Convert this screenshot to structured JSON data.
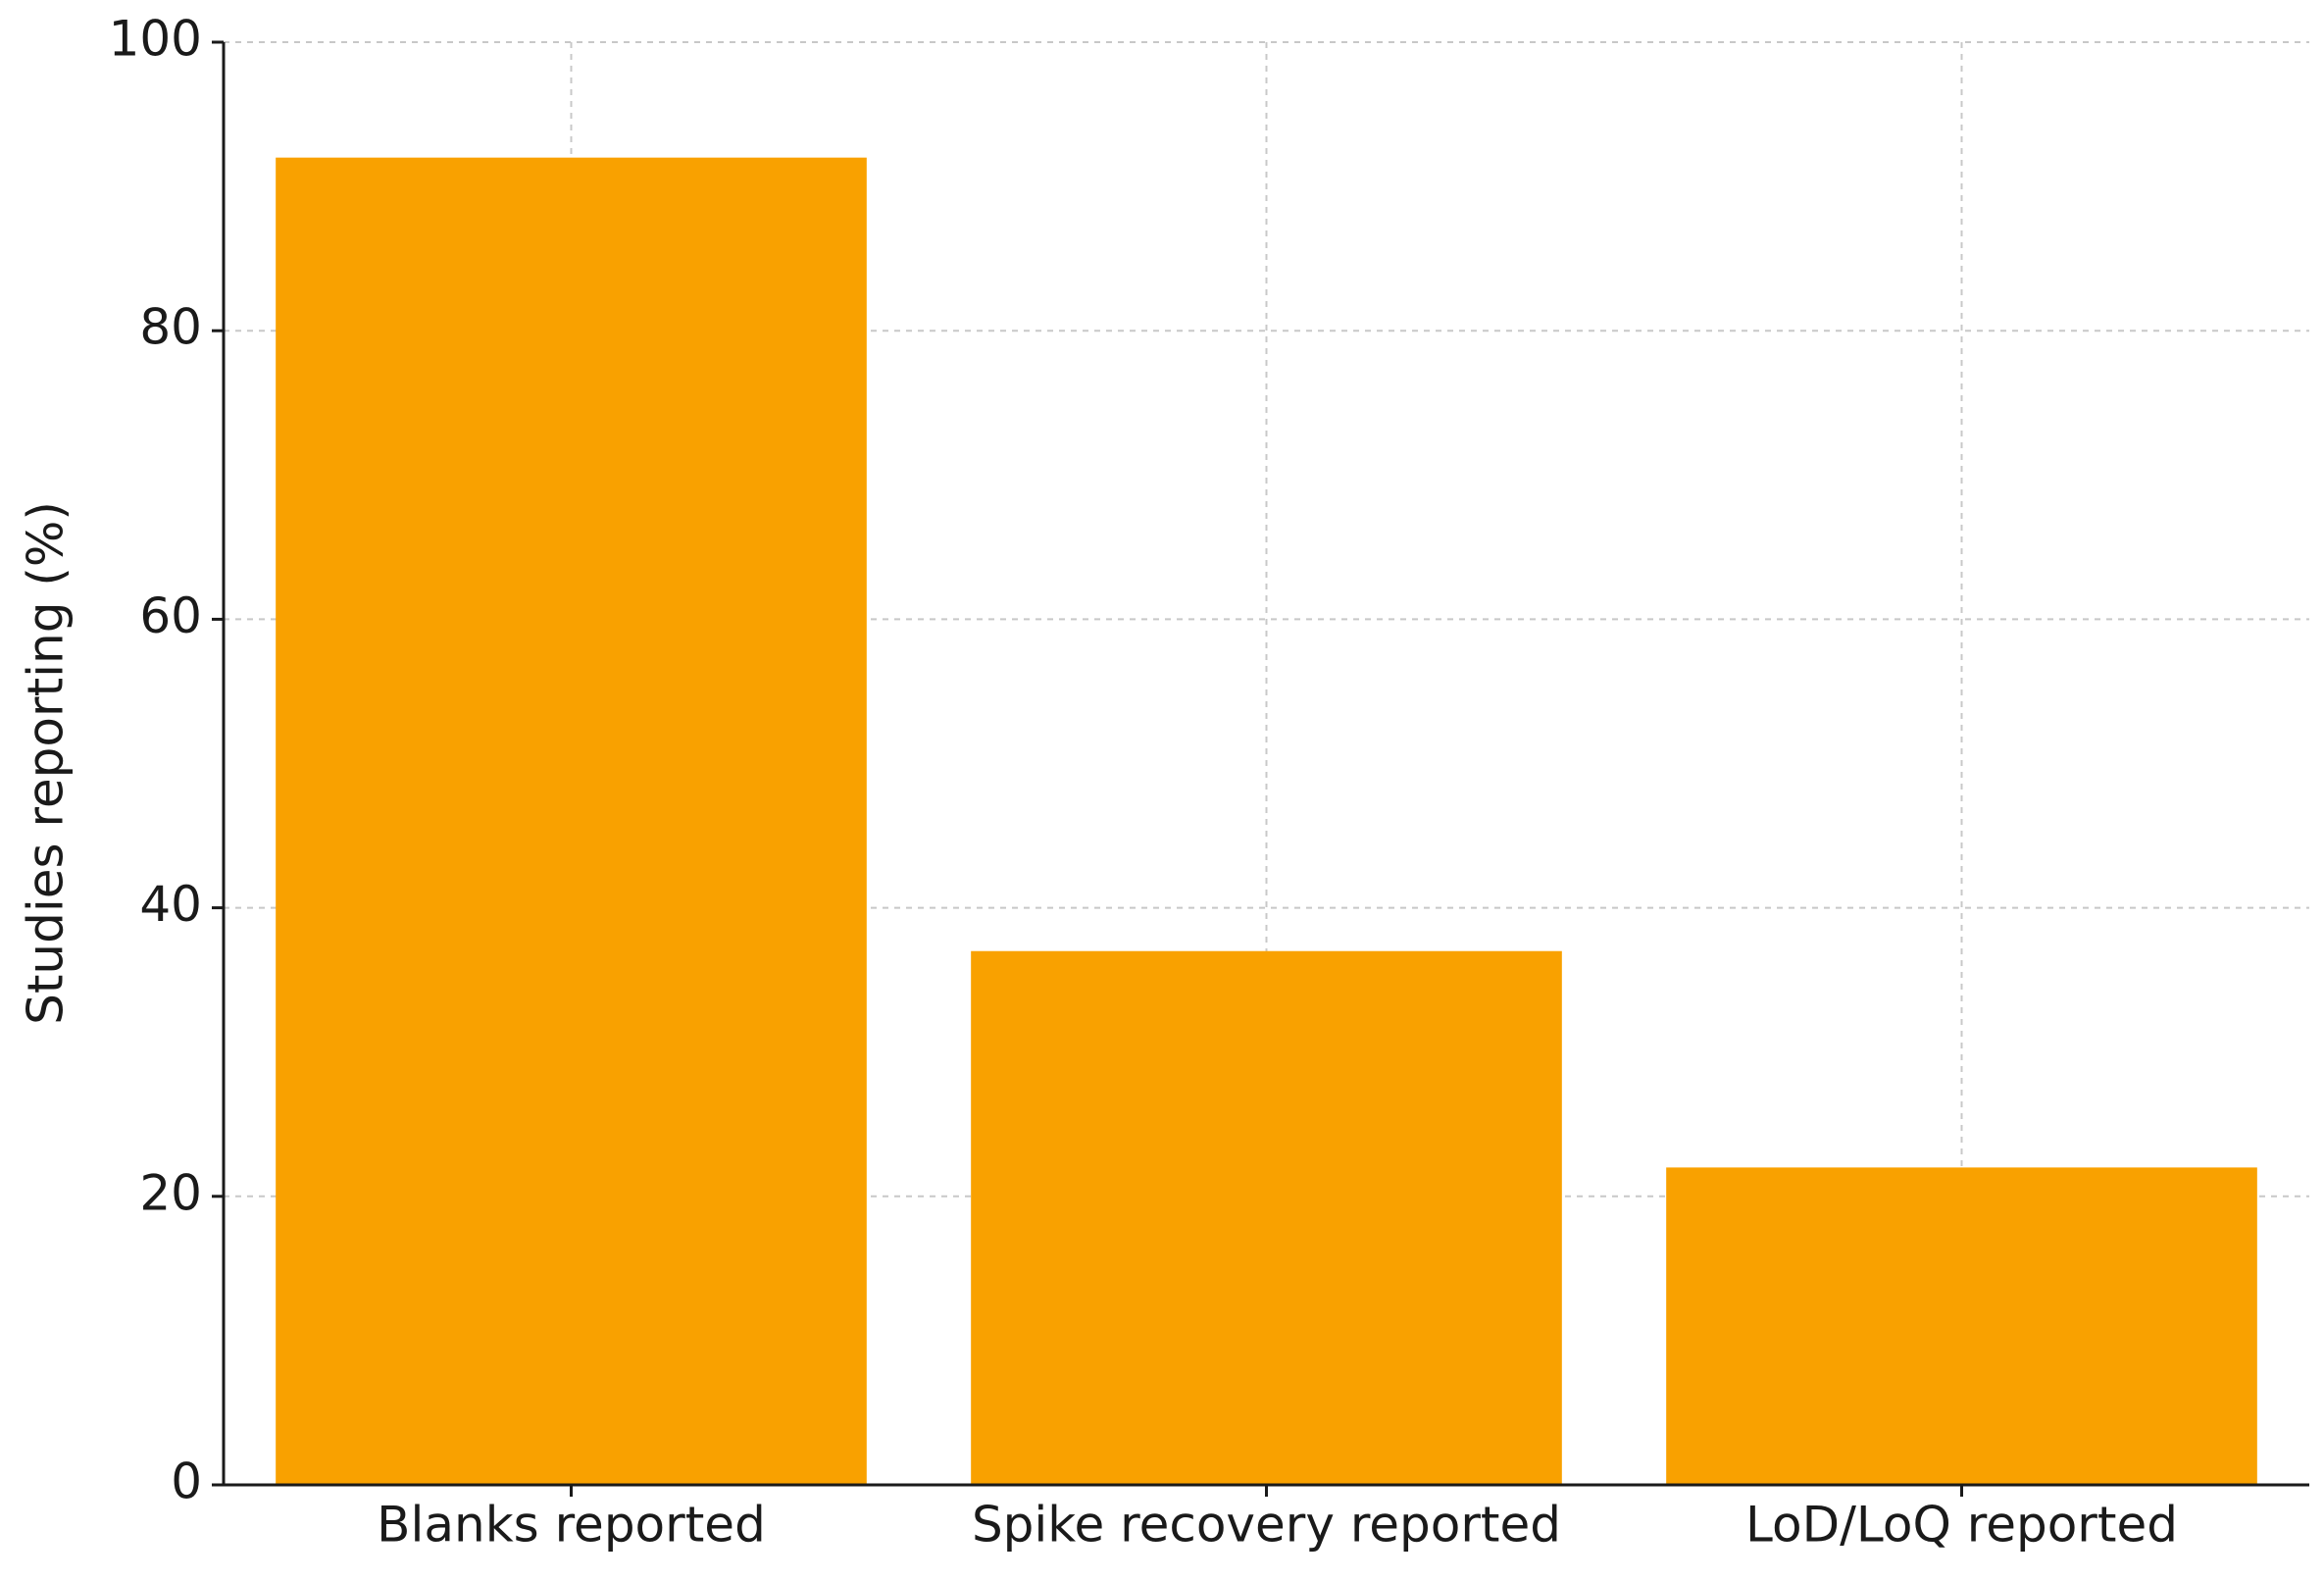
{
  "chart_data": {
    "type": "bar",
    "y_label": "Studies reporting (%)",
    "categories": [
      "Blanks reported",
      "Spike recovery reported",
      "LoD/LoQ reported"
    ],
    "values": [
      92,
      37,
      22
    ],
    "color": "#f9a100",
    "ylim": [
      0,
      100
    ],
    "yticks": [
      0,
      20,
      40,
      60,
      80,
      100
    ],
    "grid": true
  }
}
